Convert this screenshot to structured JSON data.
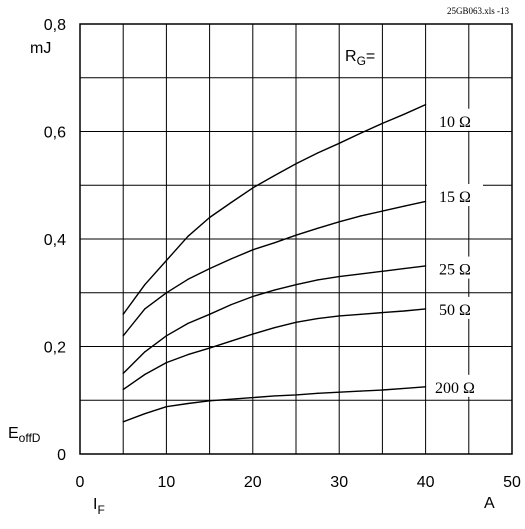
{
  "chart_data": {
    "type": "line",
    "title": "",
    "file_label": "25GB063.xls -13",
    "xlabel": "I",
    "xlabel_sub": "F",
    "xunit": "A",
    "ylabel": "E",
    "ylabel_sub": "offD",
    "yunit": "mJ",
    "legend_title": "R",
    "legend_title_sub": "G",
    "legend_title_suffix": "=",
    "xlim": [
      0,
      50
    ],
    "ylim": [
      0,
      0.8
    ],
    "x_ticks": [
      0,
      10,
      20,
      30,
      40,
      50
    ],
    "x_tick_labels": [
      "0",
      "10",
      "20",
      "30",
      "40",
      "50"
    ],
    "y_ticks": [
      0,
      0.2,
      0.4,
      0.6,
      0.8
    ],
    "y_tick_labels": [
      "0",
      "0,2",
      "0,4",
      "0,6",
      "0,8"
    ],
    "grid": true,
    "x": [
      5,
      7.5,
      10,
      12.5,
      15,
      17.5,
      20,
      22.5,
      25,
      27.5,
      30,
      32.5,
      35,
      37.5,
      40
    ],
    "series": [
      {
        "name": "10 Ω",
        "label_y": 0.62,
        "values": [
          0.26,
          0.315,
          0.36,
          0.405,
          0.44,
          0.468,
          0.495,
          0.518,
          0.54,
          0.56,
          0.578,
          0.597,
          0.615,
          0.632,
          0.65
        ]
      },
      {
        "name": "15 Ω",
        "label_y": 0.48,
        "values": [
          0.22,
          0.27,
          0.3,
          0.325,
          0.345,
          0.363,
          0.38,
          0.393,
          0.407,
          0.42,
          0.432,
          0.443,
          0.452,
          0.461,
          0.47
        ]
      },
      {
        "name": "25 Ω",
        "label_y": 0.345,
        "values": [
          0.15,
          0.19,
          0.22,
          0.243,
          0.26,
          0.278,
          0.293,
          0.305,
          0.315,
          0.324,
          0.33,
          0.335,
          0.34,
          0.345,
          0.35
        ]
      },
      {
        "name": "50 Ω",
        "label_y": 0.27,
        "values": [
          0.12,
          0.148,
          0.17,
          0.185,
          0.197,
          0.21,
          0.223,
          0.235,
          0.245,
          0.252,
          0.257,
          0.26,
          0.263,
          0.266,
          0.27
        ]
      },
      {
        "name": "200 Ω",
        "label_y": 0.125,
        "values": [
          0.06,
          0.075,
          0.088,
          0.094,
          0.099,
          0.102,
          0.105,
          0.108,
          0.11,
          0.113,
          0.115,
          0.117,
          0.119,
          0.122,
          0.125
        ]
      }
    ]
  }
}
